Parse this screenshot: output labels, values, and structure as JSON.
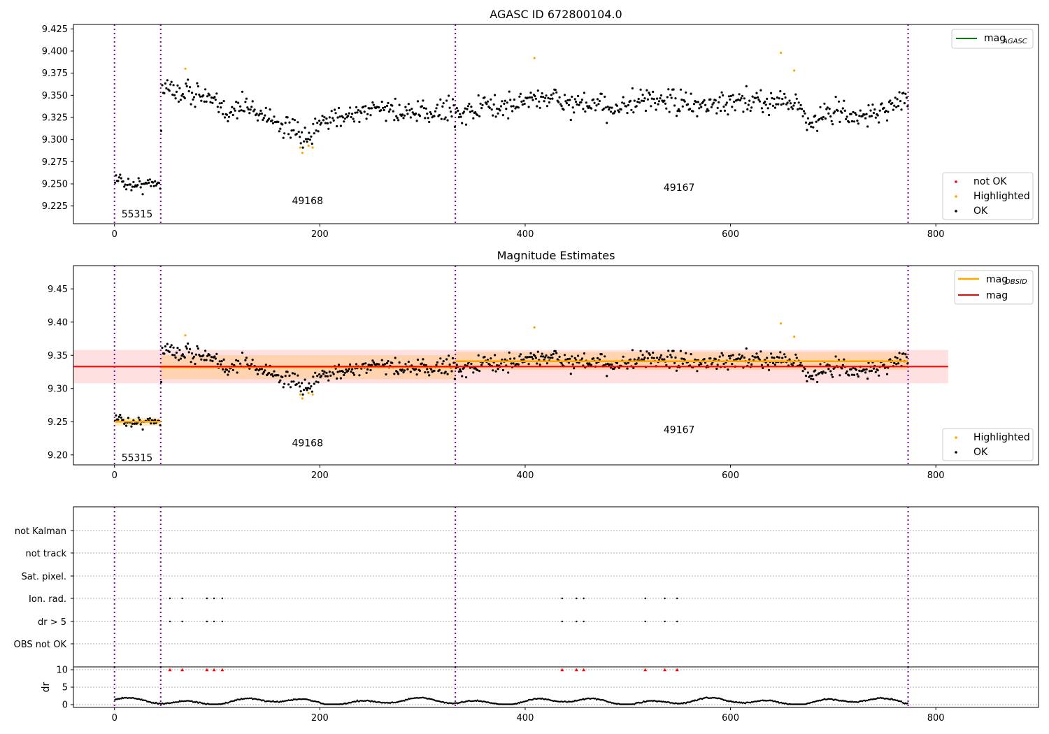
{
  "chart_data": [
    {
      "id": "agasc",
      "type": "scatter",
      "title": "AGASC ID 672800104.0",
      "xlim": [
        -40,
        900
      ],
      "ylim": [
        9.205,
        9.43
      ],
      "xticks": [
        0,
        200,
        400,
        600,
        800
      ],
      "yticks": [
        9.225,
        9.25,
        9.275,
        9.3,
        9.325,
        9.35,
        9.375,
        9.4,
        9.425
      ],
      "obs_boundaries": [
        0,
        45,
        332,
        773
      ],
      "segment_labels": [
        {
          "text": "55315",
          "x": 22,
          "y": 9.216
        },
        {
          "text": "49168",
          "x": 188,
          "y": 9.231
        },
        {
          "text": "49167",
          "x": 550,
          "y": 9.246
        }
      ],
      "mag_agasc": null,
      "legend_top": [
        {
          "label": "mag",
          "sub": "AGASC",
          "color": "#008000",
          "kind": "line"
        }
      ],
      "legend_bottom": [
        {
          "label": "not OK",
          "color": "#ff0000",
          "kind": "dot"
        },
        {
          "label": "Highlighted",
          "color": "#ffa500",
          "kind": "dot"
        },
        {
          "label": "OK",
          "color": "#000000",
          "kind": "dot"
        }
      ],
      "highlighted": [
        [
          69,
          9.38
        ],
        [
          181,
          9.291
        ],
        [
          183,
          9.285
        ],
        [
          189,
          9.293
        ],
        [
          193,
          9.291
        ],
        [
          409,
          9.392
        ],
        [
          649,
          9.398
        ],
        [
          662,
          9.378
        ]
      ]
    },
    {
      "id": "estimates",
      "type": "scatter",
      "title": "Magnitude Estimates",
      "xlim": [
        -40,
        900
      ],
      "ylim": [
        9.185,
        9.485
      ],
      "xticks": [
        0,
        200,
        400,
        600,
        800
      ],
      "yticks": [
        9.2,
        9.25,
        9.3,
        9.35,
        9.4,
        9.45
      ],
      "obs_boundaries": [
        0,
        45,
        332,
        773
      ],
      "segment_labels": [
        {
          "text": "55315",
          "x": 22,
          "y": 9.196
        },
        {
          "text": "49168",
          "x": 188,
          "y": 9.218
        },
        {
          "text": "49167",
          "x": 550,
          "y": 9.238
        }
      ],
      "mag": 9.333,
      "mag_band": {
        "low": 9.308,
        "high": 9.358,
        "x": [
          -40,
          812
        ]
      },
      "mag_obsid": [
        {
          "x0": 0,
          "x1": 45,
          "value": 9.25,
          "low": 9.244,
          "high": 9.256
        },
        {
          "x0": 45,
          "x1": 332,
          "value": 9.332,
          "low": 9.314,
          "high": 9.35
        },
        {
          "x0": 332,
          "x1": 773,
          "value": 9.341,
          "low": 9.328,
          "high": 9.355
        }
      ],
      "legend_top": [
        {
          "label": "mag",
          "sub": "OBSID",
          "color": "#ffa500",
          "kind": "line"
        },
        {
          "label": "mag",
          "sub": "",
          "color": "#ff0000",
          "kind": "line"
        }
      ],
      "legend_bottom": [
        {
          "label": "Highlighted",
          "color": "#ffa500",
          "kind": "dot"
        },
        {
          "label": "OK",
          "color": "#000000",
          "kind": "dot"
        }
      ],
      "highlighted": [
        [
          69,
          9.38
        ],
        [
          181,
          9.291
        ],
        [
          183,
          9.285
        ],
        [
          189,
          9.293
        ],
        [
          193,
          9.291
        ],
        [
          409,
          9.392
        ],
        [
          649,
          9.398
        ],
        [
          662,
          9.378
        ]
      ]
    },
    {
      "id": "flags",
      "type": "scatter",
      "xlim": [
        -40,
        900
      ],
      "xticks": [
        0,
        200,
        400,
        600,
        800
      ],
      "obs_boundaries": [
        0,
        45,
        332,
        773
      ],
      "flag_rows": [
        "not Kalman",
        "not track",
        "Sat. pixel.",
        "Ion. rad.",
        "dr > 5",
        "OBS not OK"
      ],
      "flag_points": {
        "Ion. rad.": [
          54,
          66,
          90,
          97,
          105,
          436,
          450,
          457,
          517,
          536,
          548
        ],
        "dr > 5": [
          54,
          66,
          90,
          97,
          105,
          436,
          450,
          457,
          517,
          536,
          548
        ]
      }
    },
    {
      "id": "dr",
      "type": "scatter",
      "ylabel": "dr",
      "xlim": [
        -40,
        900
      ],
      "ylim": [
        -0.8,
        10.8
      ],
      "xticks": [
        0,
        200,
        400,
        600,
        800
      ],
      "yticks": [
        0,
        5,
        10
      ],
      "obs_boundaries": [
        0,
        45,
        332,
        773
      ],
      "dr_limit_points": [
        54,
        66,
        90,
        97,
        105,
        436,
        450,
        457,
        517,
        536,
        548
      ],
      "dr_limit_value": 10
    }
  ]
}
